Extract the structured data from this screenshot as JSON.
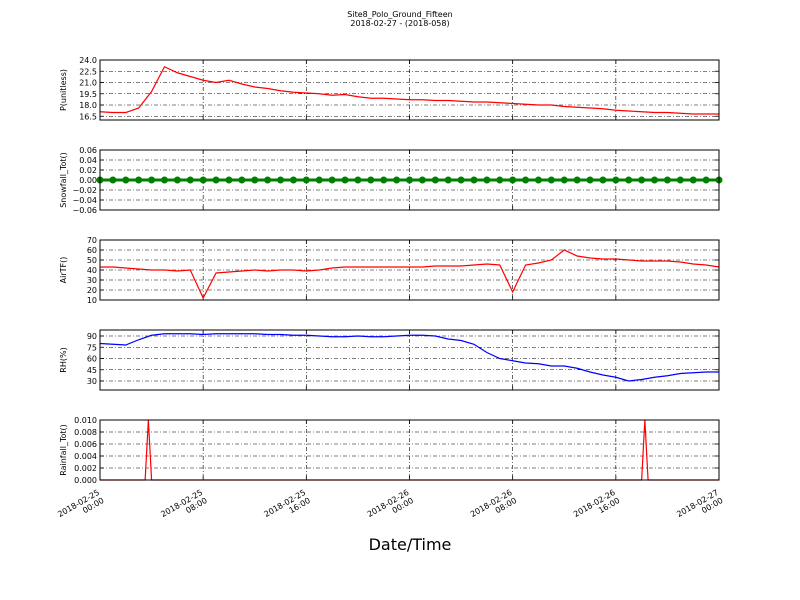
{
  "chart_data": [
    {
      "type": "line",
      "title": "Site8_Polo_Ground_Fifteen",
      "subtitle": "2018-02-27 - (2018-058)",
      "ylabel": "P(unitless)",
      "color": "#ff0000",
      "grid": true,
      "xlim": [
        "2018-02-25 00:00",
        "2018-02-27 00:00"
      ],
      "ylim": [
        16,
        24
      ],
      "yticks": [
        {
          "value": 16.5,
          "label": "16.5"
        },
        {
          "value": 18,
          "label": "18.0"
        },
        {
          "value": 19.5,
          "label": "19.5"
        },
        {
          "value": 21,
          "label": "21.0"
        },
        {
          "value": 22.5,
          "label": "22.5"
        },
        {
          "value": 24,
          "label": "24.0"
        }
      ],
      "x": [
        "2018-02-25 00:00",
        "2018-02-25 01:00",
        "2018-02-25 02:00",
        "2018-02-25 03:00",
        "2018-02-25 04:00",
        "2018-02-25 05:00",
        "2018-02-25 06:00",
        "2018-02-25 07:00",
        "2018-02-25 08:00",
        "2018-02-25 09:00",
        "2018-02-25 10:00",
        "2018-02-25 11:00",
        "2018-02-25 12:00",
        "2018-02-25 13:00",
        "2018-02-25 14:00",
        "2018-02-25 15:00",
        "2018-02-25 16:00",
        "2018-02-25 17:00",
        "2018-02-25 18:00",
        "2018-02-25 19:00",
        "2018-02-25 20:00",
        "2018-02-25 21:00",
        "2018-02-25 22:00",
        "2018-02-25 23:00",
        "2018-02-26 00:00",
        "2018-02-26 01:00",
        "2018-02-26 02:00",
        "2018-02-26 03:00",
        "2018-02-26 04:00",
        "2018-02-26 05:00",
        "2018-02-26 06:00",
        "2018-02-26 07:00",
        "2018-02-26 08:00",
        "2018-02-26 09:00",
        "2018-02-26 10:00",
        "2018-02-26 11:00",
        "2018-02-26 12:00",
        "2018-02-26 13:00",
        "2018-02-26 14:00",
        "2018-02-26 15:00",
        "2018-02-26 16:00",
        "2018-02-26 17:00",
        "2018-02-26 18:00",
        "2018-02-26 19:00",
        "2018-02-26 20:00",
        "2018-02-26 21:00",
        "2018-02-26 22:00",
        "2018-02-26 23:00",
        "2018-02-27 00:00"
      ],
      "values": [
        17.1,
        17.0,
        17.0,
        17.6,
        19.8,
        23.1,
        22.3,
        21.8,
        21.3,
        21.0,
        21.3,
        20.8,
        20.4,
        20.2,
        19.9,
        19.7,
        19.6,
        19.5,
        19.3,
        19.4,
        19.1,
        18.9,
        18.9,
        18.8,
        18.7,
        18.7,
        18.6,
        18.6,
        18.5,
        18.4,
        18.4,
        18.3,
        18.2,
        18.1,
        18.0,
        18.0,
        17.8,
        17.7,
        17.6,
        17.5,
        17.3,
        17.2,
        17.1,
        17.0,
        17.0,
        16.9,
        16.8,
        16.8,
        16.8
      ]
    },
    {
      "type": "line",
      "ylabel": "Snowfall_Tot()",
      "color": "#008000",
      "marker": true,
      "grid": true,
      "xlim": [
        "2018-02-25 00:00",
        "2018-02-27 00:00"
      ],
      "ylim": [
        -0.06,
        0.06
      ],
      "yticks": [
        {
          "value": -0.06,
          "label": "−0.06"
        },
        {
          "value": -0.04,
          "label": "−0.04"
        },
        {
          "value": -0.02,
          "label": "−0.02"
        },
        {
          "value": 0,
          "label": "0.00"
        },
        0.02,
        0.04,
        0.06
      ],
      "x": [
        "2018-02-25 00:00",
        "2018-02-25 01:00",
        "2018-02-25 02:00",
        "2018-02-25 03:00",
        "2018-02-25 04:00",
        "2018-02-25 05:00",
        "2018-02-25 06:00",
        "2018-02-25 07:00",
        "2018-02-25 08:00",
        "2018-02-25 09:00",
        "2018-02-25 10:00",
        "2018-02-25 11:00",
        "2018-02-25 12:00",
        "2018-02-25 13:00",
        "2018-02-25 14:00",
        "2018-02-25 15:00",
        "2018-02-25 16:00",
        "2018-02-25 17:00",
        "2018-02-25 18:00",
        "2018-02-25 19:00",
        "2018-02-25 20:00",
        "2018-02-25 21:00",
        "2018-02-25 22:00",
        "2018-02-25 23:00",
        "2018-02-26 00:00",
        "2018-02-26 01:00",
        "2018-02-26 02:00",
        "2018-02-26 03:00",
        "2018-02-26 04:00",
        "2018-02-26 05:00",
        "2018-02-26 06:00",
        "2018-02-26 07:00",
        "2018-02-26 08:00",
        "2018-02-26 09:00",
        "2018-02-26 10:00",
        "2018-02-26 11:00",
        "2018-02-26 12:00",
        "2018-02-26 13:00",
        "2018-02-26 14:00",
        "2018-02-26 15:00",
        "2018-02-26 16:00",
        "2018-02-26 17:00",
        "2018-02-26 18:00",
        "2018-02-26 19:00",
        "2018-02-26 20:00",
        "2018-02-26 21:00",
        "2018-02-26 22:00",
        "2018-02-26 23:00",
        "2018-02-27 00:00"
      ],
      "values": [
        0,
        0,
        0,
        0,
        0,
        0,
        0,
        0,
        0,
        0,
        0,
        0,
        0,
        0,
        0,
        0,
        0,
        0,
        0,
        0,
        0,
        0,
        0,
        0,
        0,
        0,
        0,
        0,
        0,
        0,
        0,
        0,
        0,
        0,
        0,
        0,
        0,
        0,
        0,
        0,
        0,
        0,
        0,
        0,
        0,
        0,
        0,
        0,
        0
      ]
    },
    {
      "type": "line",
      "ylabel": "AirTF()",
      "color": "#ff0000",
      "grid": true,
      "xlim": [
        "2018-02-25 00:00",
        "2018-02-27 00:00"
      ],
      "ylim": [
        10,
        70
      ],
      "yticks": [
        10,
        20,
        30,
        40,
        50,
        60,
        70
      ],
      "x": [
        "2018-02-25 00:00",
        "2018-02-25 01:00",
        "2018-02-25 02:00",
        "2018-02-25 03:00",
        "2018-02-25 04:00",
        "2018-02-25 05:00",
        "2018-02-25 06:00",
        "2018-02-25 07:00",
        "2018-02-25 08:00",
        "2018-02-25 09:00",
        "2018-02-25 10:00",
        "2018-02-25 11:00",
        "2018-02-25 12:00",
        "2018-02-25 13:00",
        "2018-02-25 14:00",
        "2018-02-25 15:00",
        "2018-02-25 16:00",
        "2018-02-25 17:00",
        "2018-02-25 18:00",
        "2018-02-25 19:00",
        "2018-02-25 20:00",
        "2018-02-25 21:00",
        "2018-02-25 22:00",
        "2018-02-25 23:00",
        "2018-02-26 00:00",
        "2018-02-26 01:00",
        "2018-02-26 02:00",
        "2018-02-26 03:00",
        "2018-02-26 04:00",
        "2018-02-26 05:00",
        "2018-02-26 06:00",
        "2018-02-26 07:00",
        "2018-02-26 08:00",
        "2018-02-26 09:00",
        "2018-02-26 10:00",
        "2018-02-26 11:00",
        "2018-02-26 12:00",
        "2018-02-26 13:00",
        "2018-02-26 14:00",
        "2018-02-26 15:00",
        "2018-02-26 16:00",
        "2018-02-26 17:00",
        "2018-02-26 18:00",
        "2018-02-26 19:00",
        "2018-02-26 20:00",
        "2018-02-26 21:00",
        "2018-02-26 22:00",
        "2018-02-26 23:00",
        "2018-02-27 00:00"
      ],
      "values": [
        43,
        43,
        42,
        41,
        40,
        40,
        39,
        40,
        12,
        37,
        38,
        39,
        40,
        39,
        40,
        40,
        39,
        40,
        42,
        43,
        43,
        43,
        43,
        43,
        43,
        43,
        44,
        44,
        44,
        45,
        46,
        45,
        18,
        45,
        47,
        50,
        60,
        54,
        52,
        51,
        51,
        50,
        49,
        49,
        49,
        48,
        46,
        45,
        43
      ]
    },
    {
      "type": "line",
      "ylabel": "RH(%)",
      "color": "#0000ff",
      "grid": true,
      "xlim": [
        "2018-02-25 00:00",
        "2018-02-27 00:00"
      ],
      "ylim": [
        18,
        98
      ],
      "yticks": [
        30,
        45,
        60,
        75,
        90
      ],
      "x": [
        "2018-02-25 00:00",
        "2018-02-25 01:00",
        "2018-02-25 02:00",
        "2018-02-25 03:00",
        "2018-02-25 04:00",
        "2018-02-25 05:00",
        "2018-02-25 06:00",
        "2018-02-25 07:00",
        "2018-02-25 08:00",
        "2018-02-25 09:00",
        "2018-02-25 10:00",
        "2018-02-25 11:00",
        "2018-02-25 12:00",
        "2018-02-25 13:00",
        "2018-02-25 14:00",
        "2018-02-25 15:00",
        "2018-02-25 16:00",
        "2018-02-25 17:00",
        "2018-02-25 18:00",
        "2018-02-25 19:00",
        "2018-02-25 20:00",
        "2018-02-25 21:00",
        "2018-02-25 22:00",
        "2018-02-25 23:00",
        "2018-02-26 00:00",
        "2018-02-26 01:00",
        "2018-02-26 02:00",
        "2018-02-26 03:00",
        "2018-02-26 04:00",
        "2018-02-26 05:00",
        "2018-02-26 06:00",
        "2018-02-26 07:00",
        "2018-02-26 08:00",
        "2018-02-26 09:00",
        "2018-02-26 10:00",
        "2018-02-26 11:00",
        "2018-02-26 12:00",
        "2018-02-26 13:00",
        "2018-02-26 14:00",
        "2018-02-26 15:00",
        "2018-02-26 16:00",
        "2018-02-26 17:00",
        "2018-02-26 18:00",
        "2018-02-26 19:00",
        "2018-02-26 20:00",
        "2018-02-26 21:00",
        "2018-02-26 22:00",
        "2018-02-26 23:00",
        "2018-02-27 00:00"
      ],
      "values": [
        80,
        79,
        78,
        85,
        91,
        93,
        93,
        93,
        92,
        93,
        93,
        93,
        93,
        92,
        92,
        91,
        91,
        90,
        89,
        89,
        90,
        89,
        89,
        90,
        91,
        91,
        90,
        86,
        84,
        79,
        68,
        60,
        57,
        54,
        53,
        50,
        50,
        47,
        42,
        38,
        35,
        30,
        32,
        35,
        37,
        40,
        41,
        42,
        42
      ]
    },
    {
      "type": "line",
      "ylabel": "Rainfall_Tot()",
      "color": "#ff0000",
      "grid": true,
      "xlabel": "Date/Time",
      "xlim": [
        "2018-02-25 00:00",
        "2018-02-27 00:00"
      ],
      "ylim": [
        0,
        0.01
      ],
      "yticks": [
        {
          "value": 0,
          "label": "0.000"
        },
        {
          "value": 0.002,
          "label": "0.002"
        },
        {
          "value": 0.004,
          "label": "0.004"
        },
        {
          "value": 0.006,
          "label": "0.006"
        },
        {
          "value": 0.008,
          "label": "0.008"
        },
        {
          "value": 0.01,
          "label": "0.010"
        }
      ],
      "xticks": [
        {
          "value": "2018-02-25 00:00",
          "label": "2018-02-25\n00:00"
        },
        {
          "value": "2018-02-25 08:00",
          "label": "2018-02-25\n08:00"
        },
        {
          "value": "2018-02-25 16:00",
          "label": "2018-02-25\n16:00"
        },
        {
          "value": "2018-02-26 00:00",
          "label": "2018-02-26\n00:00"
        },
        {
          "value": "2018-02-26 08:00",
          "label": "2018-02-26\n08:00"
        },
        {
          "value": "2018-02-26 16:00",
          "label": "2018-02-26\n16:00"
        },
        {
          "value": "2018-02-27 00:00",
          "label": "2018-02-27\n00:00"
        }
      ],
      "x": [
        "2018-02-25 00:00",
        "2018-02-25 03:30",
        "2018-02-25 03:45",
        "2018-02-25 04:00",
        "2018-02-26 18:00",
        "2018-02-26 18:15",
        "2018-02-26 18:30",
        "2018-02-27 00:00"
      ],
      "values": [
        0,
        0,
        0.01,
        0,
        0,
        0.01,
        0,
        0
      ]
    }
  ]
}
